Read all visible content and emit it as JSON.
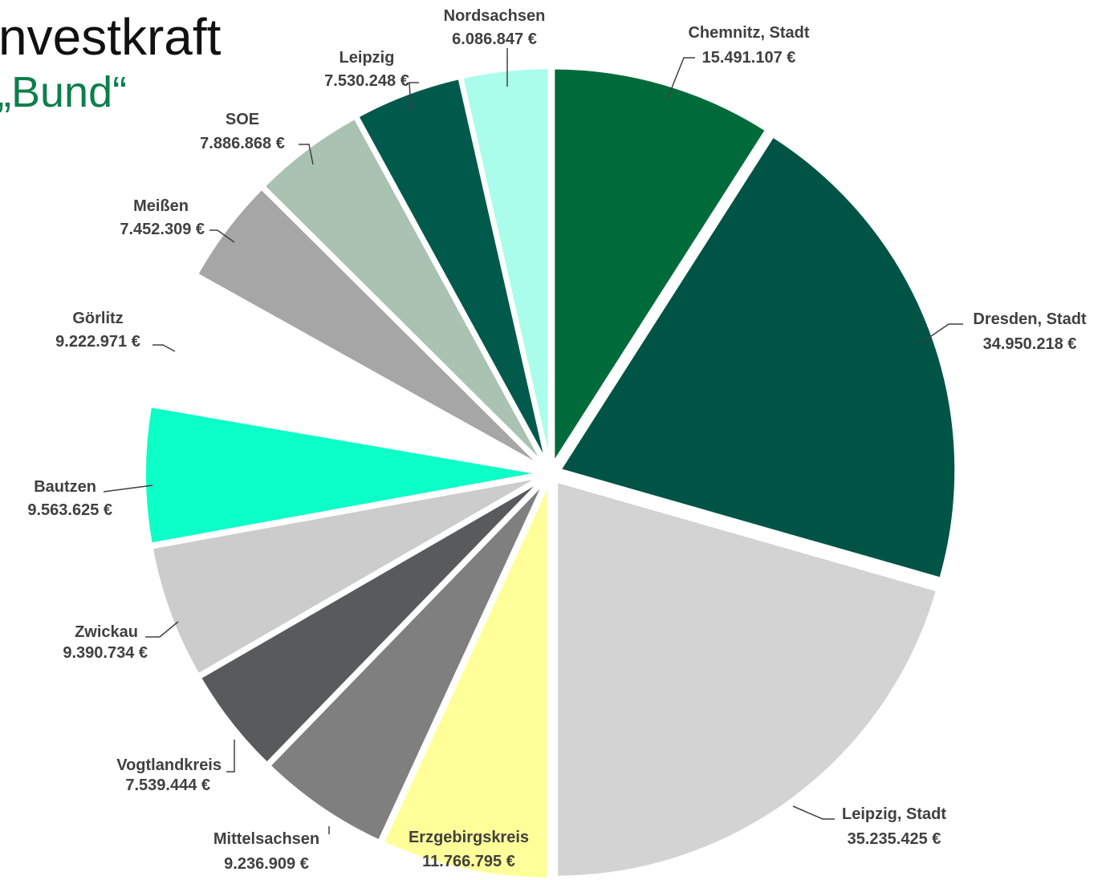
{
  "header": {
    "title_line_1": "nvestkraft",
    "title_line_2": "„Bund“"
  },
  "colors": {
    "title_green": "#0b7f4a",
    "leader_line": "#404040",
    "background": "#ffffff"
  },
  "chart_data": {
    "type": "pie",
    "currency": "€",
    "slices": [
      {
        "name": "Chemnitz, Stadt",
        "value_text": "15.491.107 €",
        "value": 15491107,
        "color": "#006b3a"
      },
      {
        "name": "Dresden, Stadt",
        "value_text": "34.950.218 €",
        "value": 34950218,
        "color": "#005446"
      },
      {
        "name": "Leipzig, Stadt",
        "value_text": "35.235.425 €",
        "value": 35235425,
        "color": "#d3d3d3"
      },
      {
        "name": "Erzgebirgskreis",
        "value_text": "11.766.795 €",
        "value": 11766795,
        "color": "#ffff99"
      },
      {
        "name": "Mittelsachsen",
        "value_text": "9.236.909 €",
        "value": 9236909,
        "color": "#7f7f7f"
      },
      {
        "name": "Vogtlandkreis",
        "value_text": "7.539.444 €",
        "value": 7539444,
        "color": "#595a5c"
      },
      {
        "name": "Zwickau",
        "value_text": "9.390.734 €",
        "value": 9390734,
        "color": "#cccccc"
      },
      {
        "name": "Bautzen",
        "value_text": "9.563.625 €",
        "value": 9563625,
        "color": "#0dffc8"
      },
      {
        "name": "Görlitz",
        "value_text": "9.222.971 €",
        "value": 9222971,
        "color": "#ffffff"
      },
      {
        "name": "Meißen",
        "value_text": "7.452.309 €",
        "value": 7452309,
        "color": "#a6a6a6"
      },
      {
        "name": "SOE",
        "value_text": "7.886.868 €",
        "value": 7886868,
        "color": "#a9c2b2"
      },
      {
        "name": "Leipzig",
        "value_text": "7.530.248 €",
        "value": 7530248,
        "color": "#005a4b"
      },
      {
        "name": "Nordsachsen",
        "value_text": "6.086.847 €",
        "value": 6086847,
        "color": "#abfdeb"
      }
    ]
  }
}
